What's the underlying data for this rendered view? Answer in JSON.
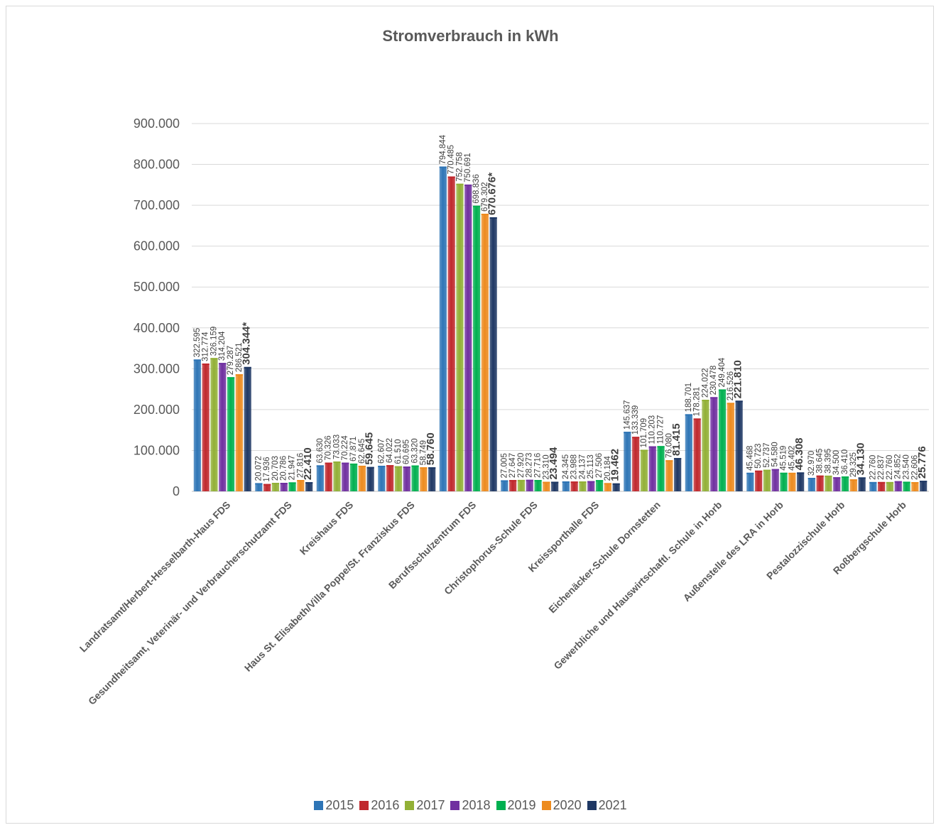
{
  "chart_data": {
    "type": "bar",
    "title": "Stromverbrauch in kWh",
    "xlabel": "",
    "ylabel": "",
    "ylim": [
      0,
      900000
    ],
    "yticks": [
      "0",
      "100.000",
      "200.000",
      "300.000",
      "400.000",
      "500.000",
      "600.000",
      "700.000",
      "800.000",
      "900.000"
    ],
    "grid": true,
    "legend_position": "bottom",
    "categories": [
      "Landratsamt/Herbert-Hesselbarth-Haus FDS",
      "Gesundheitsamt, Veterinär- und Verbraucherschutzamt FDS",
      "Kreishaus FDS",
      "Haus St. Elisabeth/Villa Poppe/St. Franziskus FDS",
      "Berufsschulzentrum FDS",
      "Christophorus-Schule FDS",
      "Kreissporthalle FDS",
      "Eichenäcker-Schule Dornstetten",
      "Gewerbliche und Hauswirtschaftl. Schule in Horb",
      "Außenstelle des LRA in Horb",
      "Pestalozzischule Horb",
      "Roßbergschule Horb"
    ],
    "series": [
      {
        "name": "2015",
        "color": "#2e75b6",
        "values": [
          322595,
          20072,
          63630,
          62607,
          794844,
          27005,
          24345,
          145637,
          188701,
          45468,
          32970,
          22760
        ]
      },
      {
        "name": "2016",
        "color": "#c0282d",
        "values": [
          312774,
          17936,
          70326,
          64022,
          770485,
          27647,
          23988,
          133339,
          178281,
          50723,
          38645,
          22837
        ]
      },
      {
        "name": "2017",
        "color": "#92b036",
        "values": [
          326159,
          20703,
          73033,
          61510,
          752758,
          27920,
          24137,
          101709,
          224022,
          52737,
          38395,
          22760
        ]
      },
      {
        "name": "2018",
        "color": "#7030a0",
        "values": [
          314204,
          20786,
          70224,
          60695,
          750691,
          28273,
          25113,
          110203,
          230478,
          54580,
          34500,
          24852
        ]
      },
      {
        "name": "2019",
        "color": "#00b050",
        "values": [
          279287,
          21947,
          67871,
          63320,
          698836,
          27716,
          27506,
          110727,
          249404,
          45519,
          36410,
          23540
        ]
      },
      {
        "name": "2020",
        "color": "#ed8b1f",
        "values": [
          286521,
          27816,
          62645,
          58749,
          679302,
          23310,
          20184,
          76080,
          216526,
          45402,
          29325,
          22606
        ]
      },
      {
        "name": "2021",
        "color": "#1f3864",
        "values": [
          304344,
          22410,
          59645,
          58760,
          670676,
          23494,
          19462,
          81415,
          221810,
          46308,
          34130,
          25776
        ]
      }
    ],
    "data_labels": [
      [
        "322.595",
        "312.774",
        "326.159",
        "314.204",
        "279.287",
        "286.521",
        "304.344*"
      ],
      [
        "20.072",
        "17.936",
        "20.703",
        "20.786",
        "21.947",
        "27.816",
        "22.410"
      ],
      [
        "63.630",
        "70.326",
        "73.033",
        "70.224",
        "67.871",
        "62.645",
        "59.645"
      ],
      [
        "62.607",
        "64.022",
        "61.510",
        "60.695",
        "63.320",
        "58.749",
        "58.760"
      ],
      [
        "794.844",
        "770.485",
        "752.758",
        "750.691",
        "698.836",
        "679.302",
        "670.676*"
      ],
      [
        "27.005",
        "27.647",
        "27.920",
        "28.273",
        "27.716",
        "23.310",
        "23.494"
      ],
      [
        "24.345",
        "23.988",
        "24.137",
        "25.113",
        "27.506",
        "20.184",
        "19.462"
      ],
      [
        "145.637",
        "133.339",
        "101.709",
        "110.203",
        "110.727",
        "76.080",
        "81.415"
      ],
      [
        "188.701",
        "178.281",
        "224.022",
        "230.478",
        "249.404",
        "216.526",
        "221.810"
      ],
      [
        "45.468",
        "50.723",
        "52.737",
        "54.580",
        "45.519",
        "45.402",
        "46.308"
      ],
      [
        "32.970",
        "38.645",
        "38.395",
        "34.500",
        "36.410",
        "29.325",
        "34.130"
      ],
      [
        "22.760",
        "22.837",
        "22.760",
        "24.852",
        "23.540",
        "22.606",
        "25.776"
      ]
    ]
  }
}
